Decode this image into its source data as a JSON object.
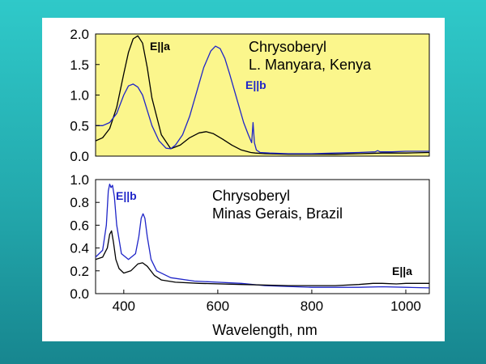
{
  "chart_data": [
    {
      "type": "line",
      "title": "Chrysoberyl",
      "subtitle": "L. Manyara, Kenya",
      "xlabel": "",
      "ylabel": "",
      "xlim": [
        340,
        1050
      ],
      "ylim": [
        0,
        2.0
      ],
      "yticks": [
        "0.0",
        "0.5",
        "1.0",
        "1.5",
        "2.0"
      ],
      "background": "#fbf68c",
      "series": [
        {
          "name": "E||a",
          "color": "#000000",
          "x": [
            340,
            355,
            370,
            385,
            400,
            410,
            420,
            430,
            440,
            450,
            460,
            480,
            500,
            520,
            540,
            560,
            575,
            590,
            610,
            630,
            650,
            670,
            680,
            700,
            750,
            800,
            850,
            900,
            950,
            1000,
            1050
          ],
          "y": [
            0.25,
            0.3,
            0.45,
            0.8,
            1.35,
            1.7,
            1.92,
            1.97,
            1.85,
            1.45,
            0.95,
            0.35,
            0.12,
            0.18,
            0.3,
            0.38,
            0.4,
            0.37,
            0.28,
            0.18,
            0.1,
            0.06,
            0.05,
            0.04,
            0.03,
            0.03,
            0.03,
            0.04,
            0.05,
            0.05,
            0.06
          ]
        },
        {
          "name": "E||b",
          "color": "#1f25c8",
          "x": [
            340,
            355,
            370,
            385,
            400,
            410,
            420,
            430,
            440,
            450,
            460,
            475,
            490,
            500,
            510,
            525,
            540,
            555,
            570,
            585,
            595,
            605,
            615,
            625,
            640,
            655,
            665,
            672,
            675,
            678,
            682,
            690,
            710,
            750,
            800,
            850,
            900,
            935,
            940,
            945,
            970,
            1000,
            1050
          ],
          "y": [
            0.5,
            0.5,
            0.55,
            0.7,
            1.0,
            1.15,
            1.18,
            1.13,
            1.0,
            0.75,
            0.5,
            0.25,
            0.13,
            0.12,
            0.18,
            0.35,
            0.65,
            1.05,
            1.45,
            1.72,
            1.8,
            1.76,
            1.6,
            1.35,
            0.95,
            0.55,
            0.35,
            0.22,
            0.55,
            0.22,
            0.1,
            0.06,
            0.05,
            0.04,
            0.04,
            0.05,
            0.06,
            0.07,
            0.09,
            0.07,
            0.07,
            0.08,
            0.08
          ]
        }
      ],
      "annotations": [
        {
          "text": "E||a",
          "color": "#000000"
        },
        {
          "text": "E||b",
          "color": "#1f25c8"
        }
      ]
    },
    {
      "type": "line",
      "title": "Chrysoberyl",
      "subtitle": "Minas Gerais, Brazil",
      "xlabel": "Wavelength, nm",
      "ylabel": "",
      "xlim": [
        340,
        1050
      ],
      "ylim": [
        0,
        1.0
      ],
      "xticks": [
        "400",
        "600",
        "800",
        "1000"
      ],
      "yticks": [
        "0.0",
        "0.2",
        "0.4",
        "0.6",
        "0.8",
        "1.0"
      ],
      "background": "#ffffff",
      "series": [
        {
          "name": "E||b",
          "color": "#1f25c8",
          "x": [
            340,
            355,
            363,
            367,
            370,
            373,
            376,
            380,
            385,
            395,
            410,
            425,
            432,
            437,
            441,
            445,
            450,
            458,
            470,
            500,
            550,
            600,
            650,
            700,
            800,
            900,
            950,
            1000,
            1050
          ],
          "y": [
            0.32,
            0.38,
            0.6,
            0.9,
            0.96,
            0.93,
            0.95,
            0.85,
            0.6,
            0.35,
            0.3,
            0.35,
            0.5,
            0.66,
            0.7,
            0.66,
            0.5,
            0.3,
            0.2,
            0.14,
            0.11,
            0.1,
            0.09,
            0.07,
            0.055,
            0.055,
            0.06,
            0.055,
            0.05
          ]
        },
        {
          "name": "E||a",
          "color": "#000000",
          "x": [
            340,
            355,
            365,
            370,
            374,
            378,
            383,
            390,
            400,
            415,
            430,
            440,
            450,
            465,
            480,
            510,
            560,
            650,
            750,
            850,
            900,
            930,
            950,
            980,
            1000,
            1050
          ],
          "y": [
            0.3,
            0.32,
            0.4,
            0.52,
            0.55,
            0.45,
            0.3,
            0.22,
            0.18,
            0.2,
            0.26,
            0.27,
            0.24,
            0.16,
            0.12,
            0.1,
            0.09,
            0.08,
            0.07,
            0.07,
            0.08,
            0.09,
            0.09,
            0.085,
            0.09,
            0.09
          ]
        }
      ],
      "annotations": [
        {
          "text": "E||b",
          "color": "#1f25c8"
        },
        {
          "text": "E||a",
          "color": "#000000"
        }
      ]
    }
  ]
}
